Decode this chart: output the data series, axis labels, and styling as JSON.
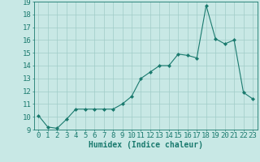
{
  "x": [
    0,
    1,
    2,
    3,
    4,
    5,
    6,
    7,
    8,
    9,
    10,
    11,
    12,
    13,
    14,
    15,
    16,
    17,
    18,
    19,
    20,
    21,
    22,
    23
  ],
  "y": [
    10.1,
    9.2,
    9.1,
    9.8,
    10.6,
    10.6,
    10.6,
    10.6,
    10.6,
    11.0,
    11.6,
    13.0,
    13.5,
    14.0,
    14.0,
    14.9,
    14.8,
    14.6,
    18.7,
    16.1,
    15.7,
    16.0,
    11.9,
    11.4
  ],
  "line_color": "#1a7a6e",
  "marker": "D",
  "marker_size": 2,
  "bg_color": "#c8e8e5",
  "grid_color": "#a0ccc8",
  "xlabel": "Humidex (Indice chaleur)",
  "xlim": [
    -0.5,
    23.5
  ],
  "ylim": [
    9,
    19
  ],
  "yticks": [
    9,
    10,
    11,
    12,
    13,
    14,
    15,
    16,
    17,
    18,
    19
  ],
  "xticks": [
    0,
    1,
    2,
    3,
    4,
    5,
    6,
    7,
    8,
    9,
    10,
    11,
    12,
    13,
    14,
    15,
    16,
    17,
    18,
    19,
    20,
    21,
    22,
    23
  ],
  "tick_color": "#1a7a6e",
  "axis_color": "#1a7a6e",
  "xlabel_fontsize": 7,
  "tick_fontsize": 6.5
}
